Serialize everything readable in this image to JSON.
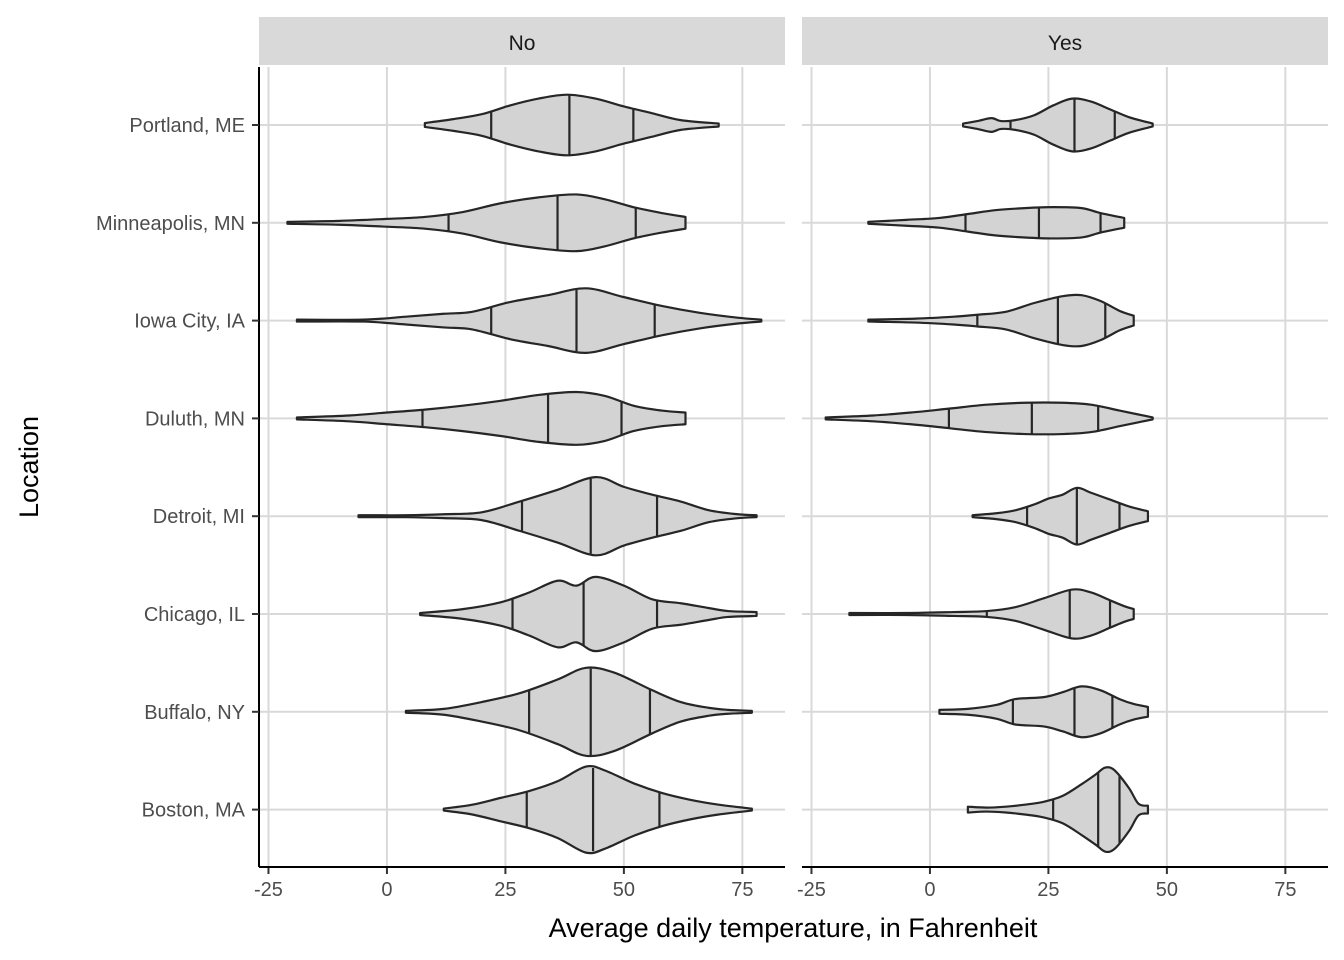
{
  "chart_data": {
    "type": "violin",
    "xlabel": "Average daily temperature, in Fahrenheit",
    "ylabel": "Location",
    "x_ticks": [
      -25,
      0,
      25,
      50,
      75
    ],
    "x_tick_labels": [
      "-25",
      "0",
      "25",
      "50",
      "75"
    ],
    "xlim": [
      -27,
      84
    ],
    "categories": [
      "Portland, ME",
      "Minneapolis, MN",
      "Iowa City, IA",
      "Duluth, MN",
      "Detroit, MI",
      "Chicago, IL",
      "Buffalo, NY",
      "Boston, MA"
    ],
    "draw_quantiles": [
      0.25,
      0.5,
      0.75
    ],
    "panels": [
      {
        "label": "No",
        "violins": [
          {
            "location": "Portland, ME",
            "min": 8,
            "max": 70,
            "q25": 22,
            "median": 38.5,
            "q75": 52,
            "profile": [
              [
                8,
                2
              ],
              [
                14,
                6
              ],
              [
                20,
                11
              ],
              [
                26,
                20
              ],
              [
                32,
                27
              ],
              [
                38,
                31
              ],
              [
                44,
                27
              ],
              [
                50,
                19
              ],
              [
                56,
                12
              ],
              [
                62,
                5
              ],
              [
                70,
                1.5
              ]
            ]
          },
          {
            "location": "Minneapolis, MN",
            "min": -21,
            "max": 63,
            "q25": 13,
            "median": 36,
            "q75": 52.5,
            "profile": [
              [
                -21,
                1
              ],
              [
                -10,
                2
              ],
              [
                0,
                4
              ],
              [
                8,
                6
              ],
              [
                16,
                11
              ],
              [
                24,
                20
              ],
              [
                32,
                26
              ],
              [
                40,
                29
              ],
              [
                46,
                24
              ],
              [
                52,
                16
              ],
              [
                58,
                10
              ],
              [
                63,
                6
              ]
            ]
          },
          {
            "location": "Iowa City, IA",
            "min": -19,
            "max": 79,
            "q25": 22,
            "median": 40,
            "q75": 56.5,
            "profile": [
              [
                -19,
                1
              ],
              [
                -5,
                1
              ],
              [
                4,
                4
              ],
              [
                12,
                7
              ],
              [
                18,
                9
              ],
              [
                26,
                19
              ],
              [
                34,
                26
              ],
              [
                42,
                33
              ],
              [
                50,
                24
              ],
              [
                58,
                15
              ],
              [
                66,
                8
              ],
              [
                74,
                3
              ],
              [
                79,
                1
              ]
            ]
          },
          {
            "location": "Duluth, MN",
            "min": -19,
            "max": 63,
            "q25": 7.5,
            "median": 34,
            "q75": 49.5,
            "profile": [
              [
                -19,
                1
              ],
              [
                -8,
                3
              ],
              [
                0,
                6
              ],
              [
                8,
                9
              ],
              [
                16,
                13
              ],
              [
                24,
                18
              ],
              [
                32,
                24
              ],
              [
                40,
                27
              ],
              [
                46,
                23
              ],
              [
                52,
                13
              ],
              [
                58,
                8
              ],
              [
                63,
                6
              ]
            ]
          },
          {
            "location": "Detroit, MI",
            "min": -6,
            "max": 78,
            "q25": 28.5,
            "median": 43,
            "q75": 57,
            "profile": [
              [
                -6,
                1
              ],
              [
                4,
                1
              ],
              [
                12,
                2
              ],
              [
                20,
                4
              ],
              [
                28,
                15
              ],
              [
                36,
                27
              ],
              [
                44,
                40
              ],
              [
                50,
                30
              ],
              [
                56,
                22
              ],
              [
                62,
                15
              ],
              [
                68,
                6
              ],
              [
                74,
                2
              ],
              [
                78,
                1
              ]
            ]
          },
          {
            "location": "Chicago, IL",
            "min": 7,
            "max": 78,
            "q25": 26.5,
            "median": 41.5,
            "q75": 57,
            "profile": [
              [
                7,
                1
              ],
              [
                16,
                5
              ],
              [
                24,
                12
              ],
              [
                30,
                22
              ],
              [
                36,
                34
              ],
              [
                40,
                29
              ],
              [
                44,
                38
              ],
              [
                50,
                29
              ],
              [
                56,
                15
              ],
              [
                62,
                11
              ],
              [
                68,
                6
              ],
              [
                72,
                3
              ],
              [
                78,
                2
              ]
            ]
          },
          {
            "location": "Buffalo, NY",
            "min": 4,
            "max": 77,
            "q25": 30,
            "median": 43,
            "q75": 55.5,
            "profile": [
              [
                4,
                1
              ],
              [
                12,
                3
              ],
              [
                20,
                10
              ],
              [
                28,
                19
              ],
              [
                36,
                33
              ],
              [
                42,
                45
              ],
              [
                48,
                40
              ],
              [
                56,
                22
              ],
              [
                62,
                10
              ],
              [
                68,
                4
              ],
              [
                72,
                2
              ],
              [
                77,
                1
              ]
            ]
          },
          {
            "location": "Boston, MA",
            "min": 12,
            "max": 77,
            "q25": 29.5,
            "median": 43.5,
            "q75": 57.5,
            "profile": [
              [
                12,
                1
              ],
              [
                18,
                5
              ],
              [
                24,
                12
              ],
              [
                30,
                19
              ],
              [
                36,
                29
              ],
              [
                42,
                44
              ],
              [
                46,
                40
              ],
              [
                52,
                27
              ],
              [
                58,
                17
              ],
              [
                64,
                10
              ],
              [
                70,
                5
              ],
              [
                77,
                1
              ]
            ]
          }
        ]
      },
      {
        "label": "Yes",
        "violins": [
          {
            "location": "Portland, ME",
            "min": 7,
            "max": 47,
            "q25": 17,
            "median": 30.5,
            "q75": 39,
            "profile": [
              [
                7,
                1.5
              ],
              [
                10,
                4
              ],
              [
                13,
                7
              ],
              [
                15,
                4
              ],
              [
                18,
                5
              ],
              [
                22,
                10
              ],
              [
                26,
                20
              ],
              [
                30,
                27
              ],
              [
                34,
                24
              ],
              [
                38,
                16
              ],
              [
                42,
                8
              ],
              [
                47,
                1.5
              ]
            ]
          },
          {
            "location": "Minneapolis, MN",
            "min": -13,
            "max": 41,
            "q25": 7.5,
            "median": 23,
            "q75": 36,
            "profile": [
              [
                -13,
                1
              ],
              [
                -5,
                3
              ],
              [
                2,
                5
              ],
              [
                8,
                9
              ],
              [
                14,
                13
              ],
              [
                20,
                15
              ],
              [
                26,
                16
              ],
              [
                32,
                15
              ],
              [
                36,
                10
              ],
              [
                41,
                5
              ]
            ]
          },
          {
            "location": "Iowa City, IA",
            "min": -13,
            "max": 43,
            "q25": 10,
            "median": 27,
            "q75": 37,
            "profile": [
              [
                -13,
                1
              ],
              [
                -3,
                2
              ],
              [
                5,
                4
              ],
              [
                10,
                6
              ],
              [
                16,
                9
              ],
              [
                22,
                18
              ],
              [
                28,
                25
              ],
              [
                32,
                26
              ],
              [
                36,
                20
              ],
              [
                40,
                10
              ],
              [
                43,
                5
              ]
            ]
          },
          {
            "location": "Duluth, MN",
            "min": -22,
            "max": 47,
            "q25": 4,
            "median": 21.5,
            "q75": 35.5,
            "profile": [
              [
                -22,
                1
              ],
              [
                -12,
                3
              ],
              [
                -4,
                6
              ],
              [
                4,
                10
              ],
              [
                12,
                14
              ],
              [
                20,
                16
              ],
              [
                28,
                16
              ],
              [
                34,
                14
              ],
              [
                40,
                8
              ],
              [
                44,
                4
              ],
              [
                47,
                1
              ]
            ]
          },
          {
            "location": "Detroit, MI",
            "min": 9,
            "max": 46,
            "q25": 20.5,
            "median": 31,
            "q75": 40,
            "profile": [
              [
                9,
                1
              ],
              [
                14,
                3
              ],
              [
                18,
                6
              ],
              [
                22,
                12
              ],
              [
                25,
                18
              ],
              [
                28,
                22
              ],
              [
                31,
                29
              ],
              [
                34,
                24
              ],
              [
                38,
                17
              ],
              [
                42,
                10
              ],
              [
                46,
                5
              ]
            ]
          },
          {
            "location": "Chicago, IL",
            "min": -17,
            "max": 43,
            "q25": 12,
            "median": 29.5,
            "q75": 38,
            "profile": [
              [
                -17,
                1
              ],
              [
                -5,
                1
              ],
              [
                5,
                2
              ],
              [
                12,
                3
              ],
              [
                18,
                7
              ],
              [
                24,
                16
              ],
              [
                30,
                25
              ],
              [
                34,
                22
              ],
              [
                38,
                14
              ],
              [
                41,
                8
              ],
              [
                43,
                5
              ]
            ]
          },
          {
            "location": "Buffalo, NY",
            "min": 2,
            "max": 46,
            "q25": 17.5,
            "median": 30.5,
            "q75": 38.5,
            "profile": [
              [
                2,
                2
              ],
              [
                8,
                3
              ],
              [
                14,
                7
              ],
              [
                18,
                13
              ],
              [
                24,
                15
              ],
              [
                28,
                20
              ],
              [
                32,
                26
              ],
              [
                36,
                22
              ],
              [
                40,
                13
              ],
              [
                43,
                8
              ],
              [
                46,
                5
              ]
            ]
          },
          {
            "location": "Boston, MA",
            "min": 8,
            "max": 46,
            "q25": 26,
            "median": 35.5,
            "q75": 40,
            "profile": [
              [
                8,
                3
              ],
              [
                12,
                2
              ],
              [
                16,
                3
              ],
              [
                20,
                5
              ],
              [
                24,
                8
              ],
              [
                28,
                14
              ],
              [
                32,
                26
              ],
              [
                35,
                36
              ],
              [
                37,
                43
              ],
              [
                39,
                40
              ],
              [
                42,
                22
              ],
              [
                44,
                6
              ],
              [
                46,
                4
              ]
            ]
          }
        ]
      }
    ]
  }
}
